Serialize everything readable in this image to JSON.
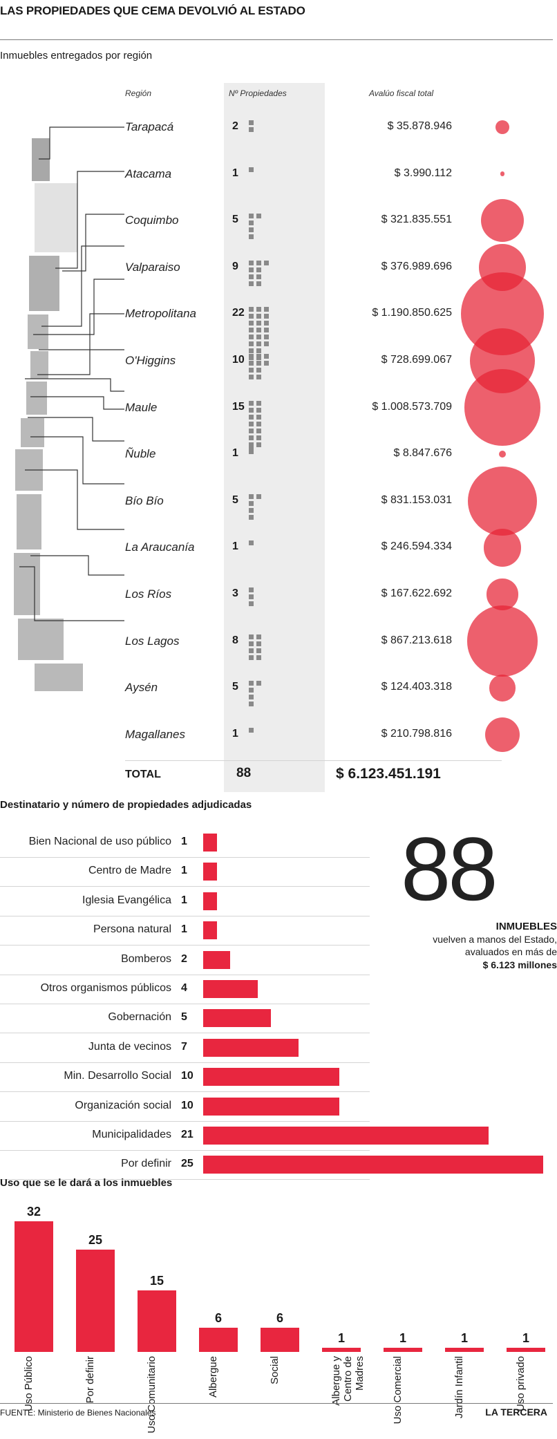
{
  "header": {
    "title": "LAS PROPIEDADES QUE CEMA DEVOLVIÓ AL ESTADO"
  },
  "section1": {
    "title": "Inmuebles entregados por región",
    "col_region": "Región",
    "col_count": "Nº Propiedades",
    "col_value": "Avalúo fiscal total",
    "total_label": "TOTAL",
    "total_count": "88",
    "total_value": "$ 6.123.451.191"
  },
  "section2": {
    "title": "Destinatario y número de propiedades adjudicadas",
    "big_number": "88",
    "info_line1": "INMUEBLES",
    "info_line2": "vuelven a manos del Estado,",
    "info_line3": "avaluados en más de",
    "info_line4": "$ 6.123 millones"
  },
  "section3": {
    "title": "Uso que se le dará a los inmuebles"
  },
  "footer": {
    "source": "FUENTE: Ministerio de Bienes Nacionales",
    "brand": "LA TERCERA"
  },
  "colors": {
    "accent": "#e8263f",
    "bubble": "#e62334",
    "square": "#8a8a8a"
  },
  "chart_data": [
    {
      "type": "table",
      "title": "Inmuebles entregados por región",
      "columns": [
        "Región",
        "Nº Propiedades",
        "Avalúo fiscal total"
      ],
      "rows": [
        {
          "region": "Tarapacá",
          "count": 2,
          "count_label": "2",
          "value": 35878946,
          "value_label": "$ 35.878.946"
        },
        {
          "region": "Atacama",
          "count": 1,
          "count_label": "1",
          "value": 3990112,
          "value_label": "$ 3.990.112"
        },
        {
          "region": "Coquimbo",
          "count": 5,
          "count_label": "5",
          "value": 321835551,
          "value_label": "$ 321.835.551"
        },
        {
          "region": "Valparaiso",
          "count": 9,
          "count_label": "9",
          "value": 376989696,
          "value_label": "$ 376.989.696"
        },
        {
          "region": "Metropolitana",
          "count": 22,
          "count_label": "22",
          "value": 1190850625,
          "value_label": "$ 1.190.850.625"
        },
        {
          "region": "O'Higgins",
          "count": 10,
          "count_label": "10",
          "value": 728699067,
          "value_label": "$ 728.699.067"
        },
        {
          "region": "Maule",
          "count": 15,
          "count_label": "15",
          "value": 1008573709,
          "value_label": "$ 1.008.573.709"
        },
        {
          "region": "Ñuble",
          "count": 1,
          "count_label": "1",
          "value": 8847676,
          "value_label": "$ 8.847.676"
        },
        {
          "region": "Bío Bío",
          "count": 5,
          "count_label": "5",
          "value": 831153031,
          "value_label": "$ 831.153.031"
        },
        {
          "region": "La Araucanía",
          "count": 1,
          "count_label": "1",
          "value": 246594334,
          "value_label": "$ 246.594.334"
        },
        {
          "region": "Los Ríos",
          "count": 3,
          "count_label": "3",
          "value": 167622692,
          "value_label": "$ 167.622.692"
        },
        {
          "region": "Los Lagos",
          "count": 8,
          "count_label": "8",
          "value": 867213618,
          "value_label": "$ 867.213.618"
        },
        {
          "region": "Aysén",
          "count": 5,
          "count_label": "5",
          "value": 124403318,
          "value_label": "$ 124.403.318"
        },
        {
          "region": "Magallanes",
          "count": 1,
          "count_label": "1",
          "value": 210798816,
          "value_label": "$ 210.798.816"
        }
      ]
    },
    {
      "type": "bar",
      "orientation": "horizontal",
      "title": "Destinatario y número de propiedades adjudicadas",
      "categories": [
        "Bien Nacional de uso público",
        "Centro de Madre",
        "Iglesia Evangélica",
        "Persona natural",
        "Bomberos",
        "Otros organismos públicos",
        "Gobernación",
        "Junta de vecinos",
        "Min. Desarrollo Social",
        "Organización social",
        "Municipalidades",
        "Por definir"
      ],
      "values": [
        1,
        1,
        1,
        1,
        2,
        4,
        5,
        7,
        10,
        10,
        21,
        25
      ],
      "value_labels": [
        "1",
        "1",
        "1",
        "1",
        "2",
        "4",
        "5",
        "7",
        "10",
        "10",
        "21",
        "25"
      ],
      "xlim": [
        0,
        25
      ]
    },
    {
      "type": "bar",
      "orientation": "vertical",
      "title": "Uso que se le dará a los inmuebles",
      "categories": [
        "Uso Público",
        "Por definir",
        "Uso Comunitario",
        "Albergue",
        "Social",
        "Albergue y Centro de Madres",
        "Uso Comercial",
        "Jardín Infantil",
        "Uso privado"
      ],
      "values": [
        32,
        25,
        15,
        6,
        6,
        1,
        1,
        1,
        1
      ],
      "value_labels": [
        "32",
        "25",
        "15",
        "6",
        "6",
        "1",
        "1",
        "1",
        "1"
      ],
      "ylim": [
        0,
        32
      ]
    }
  ]
}
